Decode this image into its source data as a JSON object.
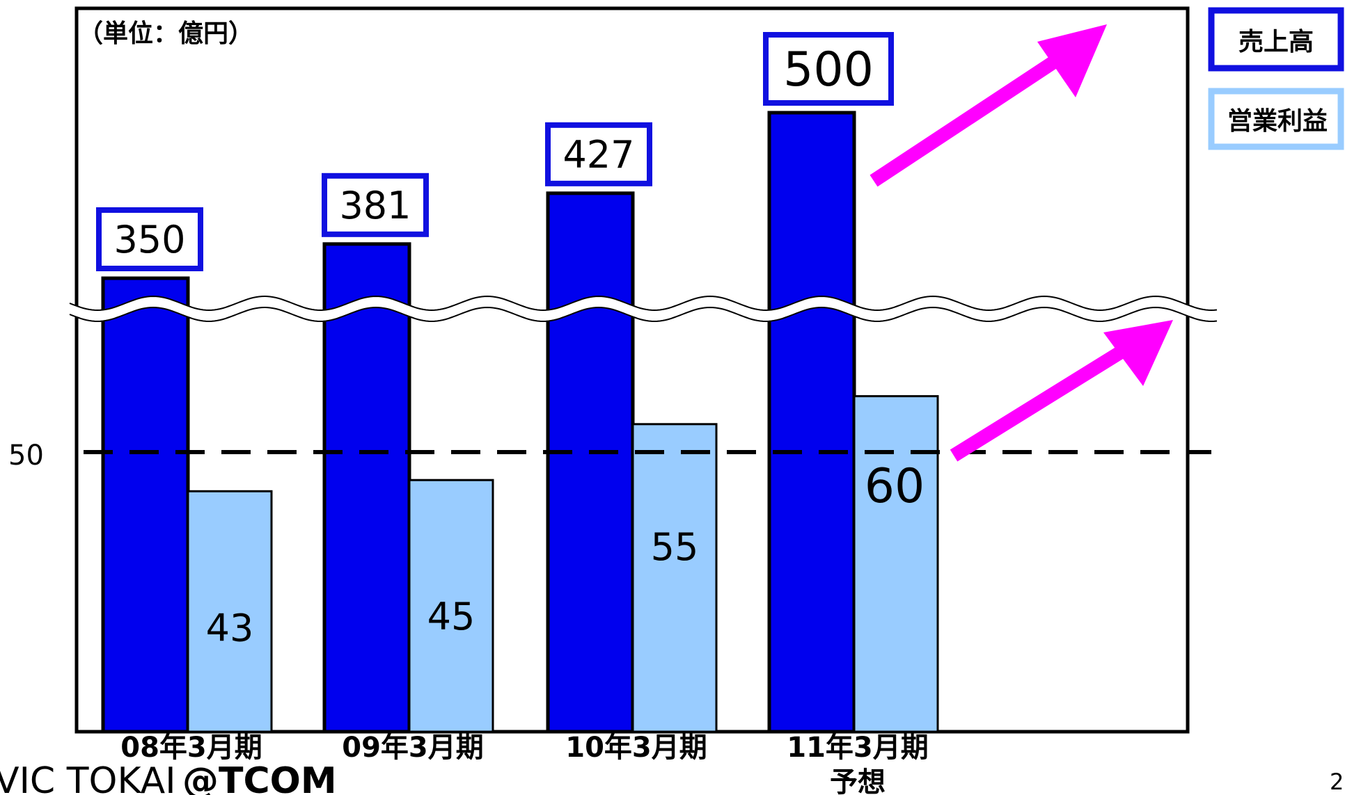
{
  "chart_data": {
    "type": "bar",
    "unit_label": "（単位：億円）",
    "categories": [
      [
        "08年3月期"
      ],
      [
        "09年3月期"
      ],
      [
        "10年3月期"
      ],
      [
        "11年3月期",
        "予想"
      ]
    ],
    "series": [
      {
        "name": "売上高",
        "values": [
          350,
          381,
          427,
          500
        ],
        "labels": [
          "350",
          "381",
          "427",
          "500"
        ],
        "color": "#0000EE",
        "label_border_color": "#1010E0"
      },
      {
        "name": "営業利益",
        "values": [
          43,
          45,
          55,
          60
        ],
        "labels": [
          "43",
          "45",
          "55",
          "60"
        ],
        "color": "#99CCFF"
      }
    ],
    "reference_line": {
      "value": 50,
      "label": "50"
    },
    "axis_break": true,
    "trend_arrows": 2,
    "colors": {
      "arrow": "#FF00FF",
      "legend_sales_border": "#1010E0",
      "legend_profit_border": "#99CCFF"
    }
  },
  "footer": {
    "logo_text_left": "VIC TOKAI",
    "logo_text_right": "@TCOM",
    "page_number": "2"
  }
}
